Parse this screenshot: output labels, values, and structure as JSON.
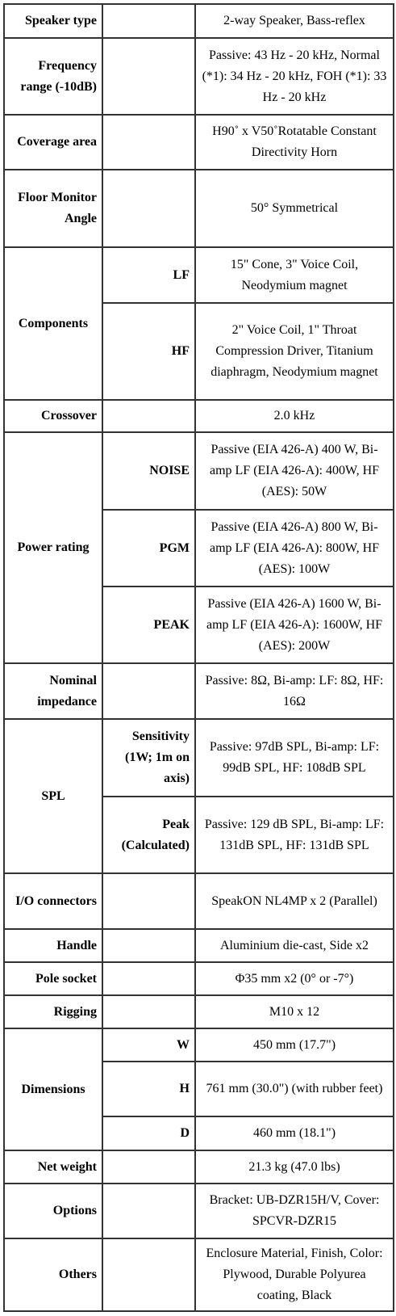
{
  "table": {
    "rows": [
      {
        "label": "Speaker type",
        "value": "2-way Speaker, Bass-reflex"
      },
      {
        "label": "Frequency range (-10dB)",
        "value": "Passive: 43 Hz - 20 kHz, Normal (*1): 34 Hz - 20 kHz, FOH (*1): 33 Hz - 20 kHz"
      },
      {
        "label": "Coverage area",
        "value": "H90˚ x V50˚Rotatable Constant Directivity Horn"
      },
      {
        "label": "Floor Monitor Angle",
        "value": "50° Symmetrical"
      },
      {
        "label": "Components",
        "items": [
          {
            "label": "LF",
            "value": "15\" Cone, 3\" Voice Coil, Neodymium magnet"
          },
          {
            "label": "HF",
            "value": "2\" Voice Coil, 1\" Throat Compression Driver, Titanium diaphragm, Neodymium magnet"
          }
        ]
      },
      {
        "label": "Crossover",
        "value": "2.0 kHz"
      },
      {
        "label": "Power rating",
        "items": [
          {
            "label": "NOISE",
            "value": "Passive (EIA 426-A) 400 W, Bi-amp LF (EIA 426-A): 400W, HF (AES): 50W"
          },
          {
            "label": "PGM",
            "value": "Passive (EIA 426-A) 800 W, Bi-amp LF (EIA 426-A): 800W, HF (AES): 100W"
          },
          {
            "label": "PEAK",
            "value": "Passive (EIA 426-A) 1600 W, Bi-amp LF (EIA 426-A): 1600W, HF (AES): 200W"
          }
        ]
      },
      {
        "label": "Nominal impedance",
        "value": "Passive: 8Ω, Bi-amp: LF: 8Ω, HF: 16Ω"
      },
      {
        "label": "SPL",
        "items": [
          {
            "label": "Sensitivity (1W; 1m on axis)",
            "value": "Passive: 97dB SPL, Bi-amp: LF: 99dB SPL, HF: 108dB SPL"
          },
          {
            "label": "Peak (Calculated)",
            "value": "Passive: 129 dB SPL, Bi-amp: LF: 131dB SPL, HF: 131dB SPL"
          }
        ]
      },
      {
        "label": "I/O connectors",
        "value": "SpeakON NL4MP x 2 (Parallel)"
      },
      {
        "label": "Handle",
        "value": "Aluminium die-cast, Side x2"
      },
      {
        "label": "Pole socket",
        "value": "Φ35 mm x2 (0° or -7°)"
      },
      {
        "label": "Rigging",
        "value": "M10 x 12"
      },
      {
        "label": "Dimensions",
        "items": [
          {
            "label": "W",
            "value": "450 mm (17.7\")"
          },
          {
            "label": "H",
            "value": "761 mm (30.0\") (with rubber feet)"
          },
          {
            "label": "D",
            "value": "460 mm (18.1\")"
          }
        ]
      },
      {
        "label": "Net weight",
        "value": "21.3 kg (47.0 lbs)"
      },
      {
        "label": "Options",
        "value": "Bracket: UB-DZR15H/V, Cover: SPCVR-DZR15"
      },
      {
        "label": "Others",
        "value": "Enclosure Material, Finish, Color: Plywood, Durable Polyurea coating, Black"
      }
    ]
  }
}
